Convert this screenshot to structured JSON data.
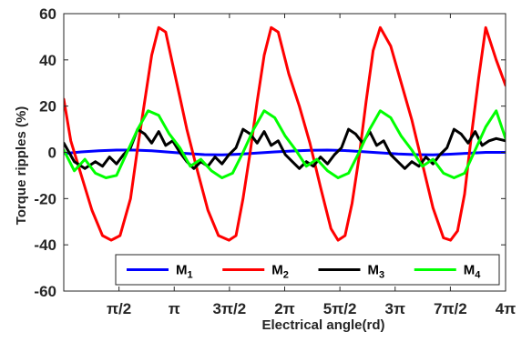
{
  "chart_data": {
    "type": "line",
    "title": "",
    "xlabel": "Electrical angle(rd)",
    "ylabel": "Torque ripples (%)",
    "xlim": [
      0,
      12.566
    ],
    "ylim": [
      -60,
      60
    ],
    "grid": false,
    "legend_position": "bottom",
    "y_ticks": [
      -60,
      -40,
      -20,
      0,
      20,
      40,
      60
    ],
    "y_tick_labels": [
      "-60",
      "-40",
      "-20",
      "0",
      "20",
      "40",
      "60"
    ],
    "x_ticks": [
      1.5708,
      3.1416,
      4.7124,
      6.2832,
      7.854,
      9.4248,
      10.9956,
      12.5664
    ],
    "x_tick_labels": [
      "π/2",
      "π",
      "3π/2",
      "2π",
      "5π/2",
      "3π",
      "7π/2",
      "4π"
    ],
    "series": [
      {
        "name": "M",
        "subscript": "1",
        "color": "#0000ff",
        "x": [
          0,
          0.5,
          1.0,
          1.5,
          2.0,
          2.5,
          3.0,
          3.5,
          4.0,
          4.5,
          5.0,
          5.5,
          6.0,
          6.5,
          7.0,
          7.5,
          8.0,
          8.5,
          9.0,
          9.5,
          10.0,
          10.5,
          11.0,
          11.5,
          12.0,
          12.566
        ],
        "y": [
          -0.5,
          0.2,
          0.7,
          1.0,
          1.0,
          0.7,
          0.1,
          -0.5,
          -1.0,
          -1.1,
          -0.8,
          -0.3,
          0.2,
          0.6,
          0.9,
          1.0,
          0.8,
          0.3,
          -0.2,
          -0.7,
          -1.0,
          -1.1,
          -0.8,
          -0.4,
          0.0,
          0.0
        ]
      },
      {
        "name": "M",
        "subscript": "2",
        "color": "#ff0000",
        "x": [
          0,
          0.2,
          0.5,
          0.8,
          1.1,
          1.35,
          1.6,
          1.9,
          2.1,
          2.3,
          2.5,
          2.7,
          2.9,
          3.1,
          3.3,
          3.5,
          3.8,
          4.1,
          4.4,
          4.7,
          4.9,
          5.1,
          5.3,
          5.5,
          5.7,
          5.9,
          6.1,
          6.4,
          6.7,
          7.0,
          7.3,
          7.6,
          7.8,
          8.0,
          8.2,
          8.4,
          8.6,
          8.8,
          9.0,
          9.3,
          9.6,
          9.9,
          10.2,
          10.5,
          10.8,
          11.0,
          11.2,
          11.4,
          11.6,
          11.8,
          12.0,
          12.3,
          12.566
        ],
        "y": [
          23,
          5,
          -10,
          -25,
          -36,
          -38,
          -36,
          -20,
          2,
          22,
          42,
          54,
          52,
          38,
          24,
          10,
          -8,
          -25,
          -36,
          -38,
          -36,
          -20,
          0,
          22,
          42,
          54,
          52,
          34,
          20,
          4,
          -15,
          -33,
          -38,
          -36,
          -22,
          -2,
          22,
          44,
          54,
          46,
          30,
          14,
          -5,
          -24,
          -37,
          -38,
          -34,
          -18,
          8,
          32,
          54,
          40,
          29
        ]
      },
      {
        "name": "M",
        "subscript": "3",
        "color": "#000000",
        "x": [
          0,
          0.3,
          0.6,
          0.9,
          1.1,
          1.3,
          1.5,
          1.7,
          1.9,
          2.1,
          2.3,
          2.5,
          2.7,
          2.9,
          3.1,
          3.3,
          3.5,
          3.7,
          3.9,
          4.1,
          4.3,
          4.5,
          4.7,
          4.9,
          5.1,
          5.3,
          5.5,
          5.7,
          5.9,
          6.1,
          6.3,
          6.5,
          6.7,
          6.9,
          7.1,
          7.3,
          7.5,
          7.7,
          7.9,
          8.1,
          8.3,
          8.5,
          8.7,
          8.9,
          9.1,
          9.3,
          9.5,
          9.7,
          9.9,
          10.1,
          10.3,
          10.5,
          10.7,
          10.9,
          11.1,
          11.3,
          11.5,
          11.7,
          11.9,
          12.1,
          12.3,
          12.566
        ],
        "y": [
          4,
          -4,
          -7,
          -4,
          -6,
          -2,
          -5,
          -1,
          2,
          10,
          8,
          4,
          9,
          3,
          5,
          0,
          -4,
          -7,
          -4,
          -6,
          -2,
          -5,
          -1,
          2,
          10,
          8,
          4,
          9,
          3,
          5,
          -1,
          -4,
          -7,
          -4,
          -6,
          -2,
          -5,
          -1,
          2,
          10,
          8,
          4,
          9,
          3,
          5,
          -1,
          -4,
          -7,
          -4,
          -6,
          -2,
          -5,
          -1,
          2,
          10,
          8,
          4,
          9,
          3,
          5,
          6,
          5
        ]
      },
      {
        "name": "M",
        "subscript": "4",
        "color": "#00ff00",
        "x": [
          0,
          0.3,
          0.6,
          0.9,
          1.2,
          1.5,
          1.8,
          2.1,
          2.4,
          2.7,
          3.0,
          3.3,
          3.6,
          3.9,
          4.2,
          4.5,
          4.8,
          5.1,
          5.4,
          5.7,
          6.0,
          6.3,
          6.6,
          6.9,
          7.2,
          7.5,
          7.8,
          8.1,
          8.4,
          8.7,
          9.0,
          9.3,
          9.6,
          9.9,
          10.2,
          10.5,
          10.8,
          11.1,
          11.4,
          11.7,
          12.0,
          12.3,
          12.566
        ],
        "y": [
          1,
          -8,
          -3,
          -9,
          -11,
          -10,
          0,
          10,
          18,
          16,
          8,
          2,
          -6,
          -3,
          -8,
          -11,
          -9,
          0,
          10,
          18,
          15,
          7,
          1,
          -6,
          -3,
          -8,
          -11,
          -9,
          0,
          10,
          18,
          15,
          7,
          1,
          -6,
          -3,
          -9,
          -11,
          -9,
          1,
          11,
          18,
          6
        ]
      }
    ]
  }
}
